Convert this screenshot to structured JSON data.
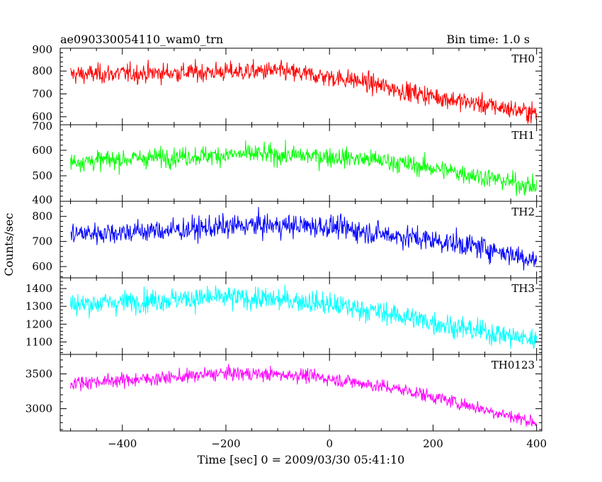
{
  "chart_data": {
    "type": "line",
    "title": "ae090330054110_wam0_trn",
    "bin_time_label": "Bin time: 1.0 s",
    "xlabel": "Time [sec] 0 = 2009/03/30 05:41:10",
    "ylabel": "Counts/sec",
    "xlim": [
      -520,
      410
    ],
    "x_ticks": [
      -400,
      -200,
      0,
      200,
      400
    ],
    "x_tick_labels": [
      "−400",
      "−200",
      "0",
      "200",
      "400"
    ],
    "x_range": [
      -500,
      400
    ],
    "bin_seconds": 1.0,
    "grid": false,
    "panels": [
      {
        "name": "TH0",
        "color": "#ff0000",
        "ylim": [
          565,
          900
        ],
        "y_ticks": [
          600,
          700,
          800,
          900
        ],
        "trend": {
          "x": [
            -500,
            -250,
            -100,
            50,
            150,
            250,
            400
          ],
          "y": [
            785,
            795,
            800,
            760,
            710,
            670,
            615
          ]
        },
        "noise": 30
      },
      {
        "name": "TH1",
        "color": "#00ff00",
        "ylim": [
          400,
          700
        ],
        "y_ticks": [
          400,
          500,
          600,
          700
        ],
        "trend": {
          "x": [
            -500,
            -300,
            -150,
            0,
            100,
            200,
            300,
            400
          ],
          "y": [
            555,
            575,
            585,
            575,
            560,
            530,
            495,
            455
          ]
        },
        "noise": 27
      },
      {
        "name": "TH2",
        "color": "#0000ff",
        "ylim": [
          555,
          860
        ],
        "y_ticks": [
          600,
          700,
          800
        ],
        "trend": {
          "x": [
            -500,
            -300,
            -150,
            0,
            100,
            200,
            300,
            400
          ],
          "y": [
            730,
            745,
            765,
            760,
            730,
            705,
            675,
            625
          ]
        },
        "noise": 32
      },
      {
        "name": "TH3",
        "color": "#00ffff",
        "ylim": [
          1030,
          1460
        ],
        "y_ticks": [
          1100,
          1200,
          1300,
          1400
        ],
        "trend": {
          "x": [
            -500,
            -300,
            -200,
            -50,
            50,
            150,
            250,
            400
          ],
          "y": [
            1310,
            1340,
            1350,
            1330,
            1290,
            1240,
            1180,
            1110
          ]
        },
        "noise": 45
      },
      {
        "name": "TH0123",
        "color": "#ff00ff",
        "ylim": [
          2680,
          3780
        ],
        "y_ticks": [
          3000,
          3500
        ],
        "trend": {
          "x": [
            -500,
            -300,
            -200,
            -50,
            50,
            150,
            250,
            400
          ],
          "y": [
            3370,
            3450,
            3510,
            3480,
            3380,
            3260,
            3080,
            2800
          ]
        },
        "noise": 70
      }
    ]
  }
}
